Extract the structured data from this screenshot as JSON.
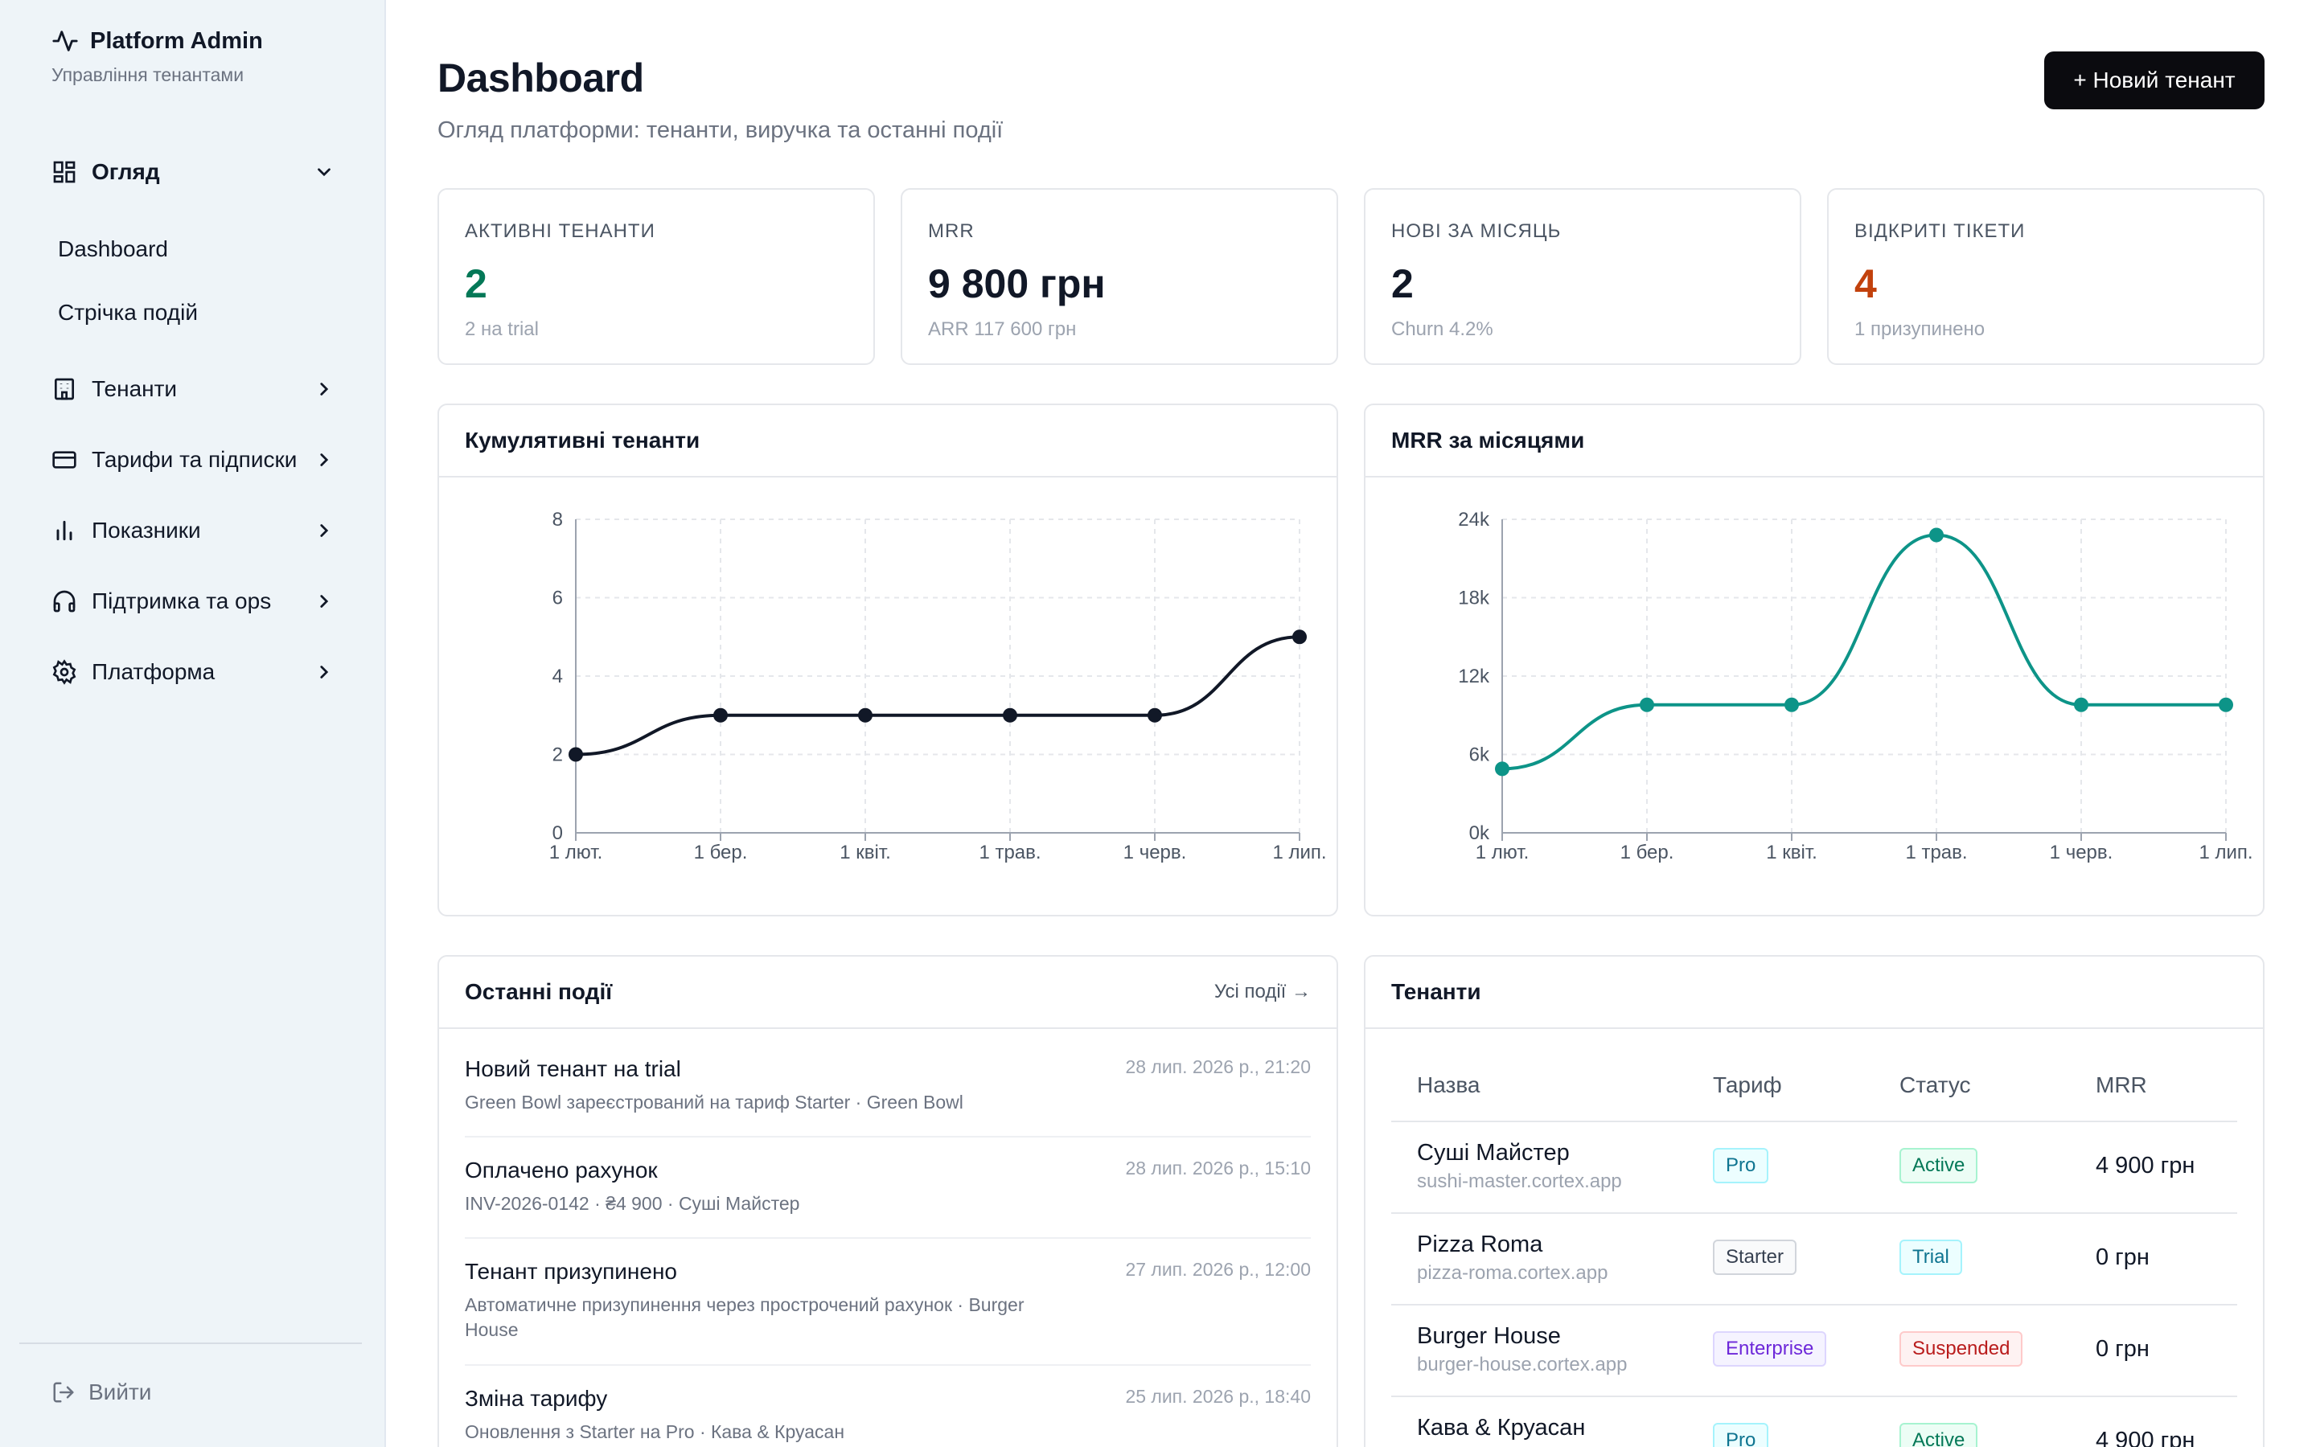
{
  "sidebar": {
    "brand_title": "Platform Admin",
    "brand_subtitle": "Управління тенантами",
    "nav": [
      {
        "label": "Огляд",
        "icon": "dashboard-icon",
        "expanded": true
      },
      {
        "label": "Тенанти",
        "icon": "building-icon"
      },
      {
        "label": "Тарифи та підписки",
        "icon": "credit-card-icon"
      },
      {
        "label": "Показники",
        "icon": "bar-chart-icon"
      },
      {
        "label": "Підтримка та ops",
        "icon": "headphones-icon"
      },
      {
        "label": "Платформа",
        "icon": "gear-icon"
      }
    ],
    "subnav": [
      "Dashboard",
      "Стрічка подій"
    ],
    "logout": "Вийти"
  },
  "header": {
    "title": "Dashboard",
    "subtitle": "Огляд платформи: тенанти, виручка та останні події",
    "new_tenant_button": "+ Новий тенант"
  },
  "stats": [
    {
      "label": "АКТИВНІ ТЕНАНТИ",
      "value": "2",
      "note": "2 на trial",
      "color": "#047857"
    },
    {
      "label": "MRR",
      "value": "9 800 грн",
      "note": "ARR 117 600 грн",
      "color": "#111827"
    },
    {
      "label": "НОВІ ЗА МІСЯЦЬ",
      "value": "2",
      "note": "Churn 4.2%",
      "color": "#111827"
    },
    {
      "label": "ВІДКРИТІ ТІКЕТИ",
      "value": "4",
      "note": "1 призупинено",
      "color": "#c2410c"
    }
  ],
  "chart_data": [
    {
      "type": "line",
      "title": "Кумулятивні тенанти",
      "x": [
        "1 лют.",
        "1 бер.",
        "1 квіт.",
        "1 трав.",
        "1 черв.",
        "1 лип."
      ],
      "series": [
        {
          "values": [
            2,
            3,
            3,
            3,
            3,
            5
          ]
        }
      ],
      "yticks": [
        "0",
        "2",
        "4",
        "6",
        "8"
      ],
      "ylim": [
        0,
        8
      ],
      "color": "#111827",
      "grid": true
    },
    {
      "type": "line",
      "title": "MRR за місяцями",
      "x": [
        "1 лют.",
        "1 бер.",
        "1 квіт.",
        "1 трав.",
        "1 черв.",
        "1 лип."
      ],
      "series": [
        {
          "values": [
            4900,
            9800,
            9800,
            22800,
            9800,
            9800
          ]
        }
      ],
      "yticks": [
        "0k",
        "6k",
        "12k",
        "18k",
        "24k"
      ],
      "ylim": [
        0,
        24000
      ],
      "color": "#0d9488",
      "grid": true
    }
  ],
  "events": {
    "title": "Останні події",
    "all_link": "Усі події →",
    "items": [
      {
        "title": "Новий тенант на trial",
        "desc": "Green Bowl зареєстрований на тариф Starter · Green Bowl",
        "time": "28 лип. 2026 р., 21:20"
      },
      {
        "title": "Оплачено рахунок",
        "desc": "INV-2026-0142 · ₴4 900 · Суші Майстер",
        "time": "28 лип. 2026 р., 15:10"
      },
      {
        "title": "Тенант призупинено",
        "desc": "Автоматичне призупинення через прострочений рахунок · Burger House",
        "time": "27 лип. 2026 р., 12:00"
      },
      {
        "title": "Зміна тарифу",
        "desc": "Оновлення з Starter на Pro · Кава & Круасан",
        "time": "25 лип. 2026 р., 18:40"
      }
    ]
  },
  "tenants": {
    "title": "Тенанти",
    "columns": [
      "Назва",
      "Тариф",
      "Статус",
      "MRR"
    ],
    "rows": [
      {
        "name": "Суші Майстер",
        "domain": "sushi-master.cortex.app",
        "plan": "Pro",
        "status": "Active",
        "mrr": "4 900 грн"
      },
      {
        "name": "Pizza Roma",
        "domain": "pizza-roma.cortex.app",
        "plan": "Starter",
        "status": "Trial",
        "mrr": "0 грн"
      },
      {
        "name": "Burger House",
        "domain": "burger-house.cortex.app",
        "plan": "Enterprise",
        "status": "Suspended",
        "mrr": "0 грн"
      },
      {
        "name": "Кава & Круасан",
        "domain": "",
        "plan": "Pro",
        "status": "Active",
        "mrr": "4 900 грн"
      }
    ]
  }
}
